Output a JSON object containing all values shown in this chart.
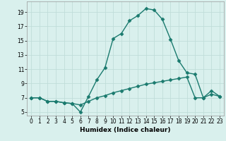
{
  "xlabel": "Humidex (Indice chaleur)",
  "bg_color": "#d9f0ed",
  "line_color": "#1a7a6e",
  "grid_color": "#c0ddd9",
  "line1_x": [
    0,
    1,
    2,
    3,
    4,
    5,
    6,
    7,
    8,
    9,
    10,
    11,
    12,
    13,
    14,
    15,
    16,
    17,
    18,
    19,
    20,
    21,
    22,
    23
  ],
  "line1_y": [
    7.0,
    7.0,
    6.5,
    6.5,
    6.3,
    6.2,
    5.0,
    7.2,
    9.5,
    11.2,
    15.3,
    16.0,
    17.8,
    18.5,
    19.5,
    19.3,
    18.0,
    15.2,
    12.2,
    10.5,
    10.3,
    7.0,
    8.0,
    7.2
  ],
  "line2_x": [
    0,
    1,
    2,
    3,
    4,
    5,
    6,
    7,
    8,
    9,
    10,
    11,
    12,
    13,
    14,
    15,
    16,
    17,
    18,
    19,
    20,
    21,
    22,
    23
  ],
  "line2_y": [
    7.0,
    7.0,
    6.5,
    6.5,
    6.3,
    6.2,
    6.0,
    6.5,
    7.0,
    7.3,
    7.7,
    8.0,
    8.3,
    8.6,
    8.9,
    9.1,
    9.3,
    9.5,
    9.7,
    9.9,
    7.0,
    7.0,
    7.5,
    7.2
  ],
  "xlim": [
    -0.5,
    23.5
  ],
  "ylim": [
    4.5,
    20.5
  ],
  "yticks": [
    5,
    7,
    9,
    11,
    13,
    15,
    17,
    19
  ],
  "xticks": [
    0,
    1,
    2,
    3,
    4,
    5,
    6,
    7,
    8,
    9,
    10,
    11,
    12,
    13,
    14,
    15,
    16,
    17,
    18,
    19,
    20,
    21,
    22,
    23
  ],
  "marker": "D",
  "markersize": 2.5,
  "linewidth": 1.0,
  "tick_fontsize": 5.5,
  "xlabel_fontsize": 6.5
}
